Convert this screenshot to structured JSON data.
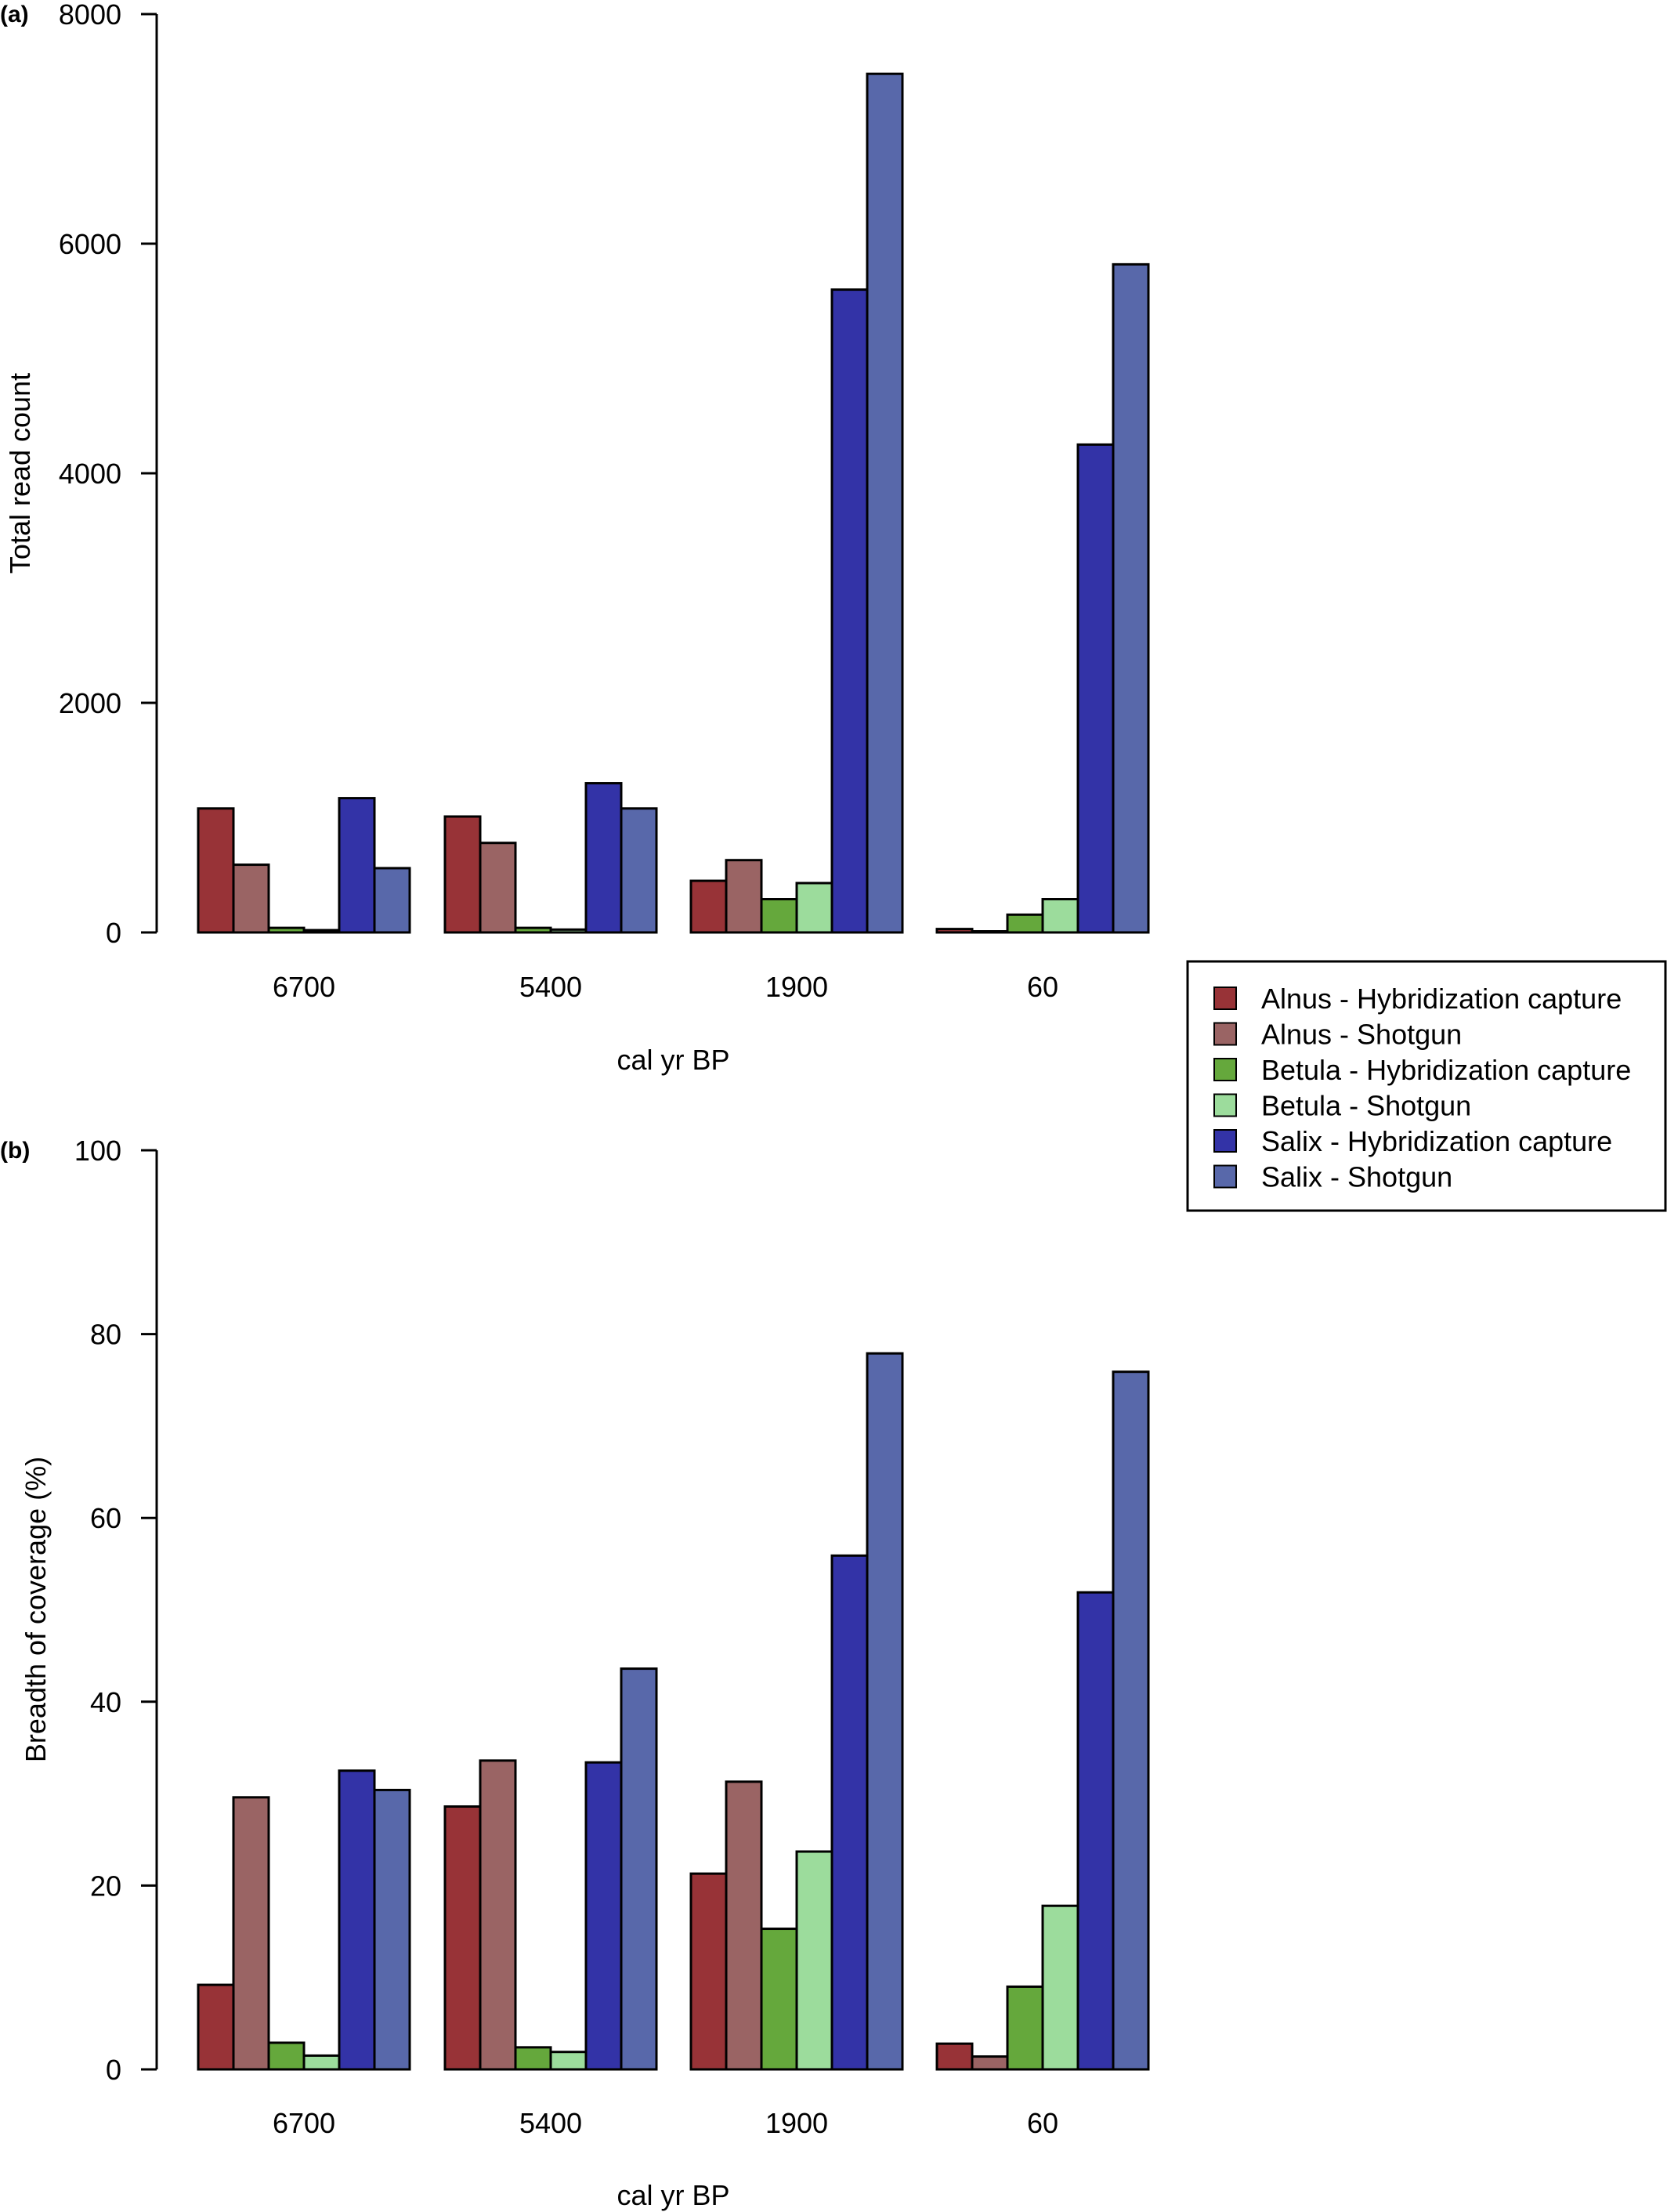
{
  "chart_data": [
    {
      "type": "bar",
      "panel_label": "(a)",
      "xlabel": "cal yr BP",
      "ylabel": "Total read count",
      "ylim": [
        0,
        8000
      ],
      "yticks": [
        "0",
        "2000",
        "4000",
        "6000",
        "8000"
      ],
      "categories": [
        "6700",
        "5400",
        "1900",
        "60"
      ],
      "series": [
        {
          "name": "Alnus - Hybridization capture",
          "values": [
            1080,
            1010,
            450,
            30
          ]
        },
        {
          "name": "Alnus - Shotgun",
          "values": [
            590,
            780,
            630,
            10
          ]
        },
        {
          "name": "Betula - Hybridization capture",
          "values": [
            40,
            40,
            290,
            155
          ]
        },
        {
          "name": "Betula - Shotgun",
          "values": [
            20,
            25,
            430,
            290
          ]
        },
        {
          "name": "Salix - Hybridization capture",
          "values": [
            1170,
            1300,
            5600,
            4250
          ]
        },
        {
          "name": "Salix - Shotgun",
          "values": [
            560,
            1080,
            7480,
            5820
          ]
        }
      ]
    },
    {
      "type": "bar",
      "panel_label": "(b)",
      "xlabel": "cal yr BP",
      "ylabel": "Breadth of coverage (%)",
      "ylim": [
        0,
        100
      ],
      "yticks": [
        "0",
        "20",
        "40",
        "60",
        "80",
        "100"
      ],
      "categories": [
        "6700",
        "5400",
        "1900",
        "60"
      ],
      "series": [
        {
          "name": "Alnus - Hybridization capture",
          "values": [
            9.2,
            28.6,
            21.3,
            2.8
          ]
        },
        {
          "name": "Alnus - Shotgun",
          "values": [
            29.6,
            33.6,
            31.3,
            1.4
          ]
        },
        {
          "name": "Betula - Hybridization capture",
          "values": [
            2.9,
            2.4,
            15.3,
            9.0
          ]
        },
        {
          "name": "Betula - Shotgun",
          "values": [
            1.5,
            1.9,
            23.7,
            17.8
          ]
        },
        {
          "name": "Salix - Hybridization capture",
          "values": [
            32.5,
            33.4,
            55.9,
            51.9
          ]
        },
        {
          "name": "Salix - Shotgun",
          "values": [
            30.4,
            43.6,
            77.9,
            75.9
          ]
        }
      ]
    }
  ],
  "legend": {
    "placement": "right",
    "items": [
      {
        "label": "Alnus - Hybridization capture",
        "color": "#983337"
      },
      {
        "label": "Alnus - Shotgun",
        "color": "#9a6464"
      },
      {
        "label": "Betula - Hybridization capture",
        "color": "#65a83c"
      },
      {
        "label": "Betula - Shotgun",
        "color": "#9cdc9c"
      },
      {
        "label": "Salix - Hybridization capture",
        "color": "#3333a7"
      },
      {
        "label": "Salix - Shotgun",
        "color": "#5868aa"
      }
    ]
  }
}
